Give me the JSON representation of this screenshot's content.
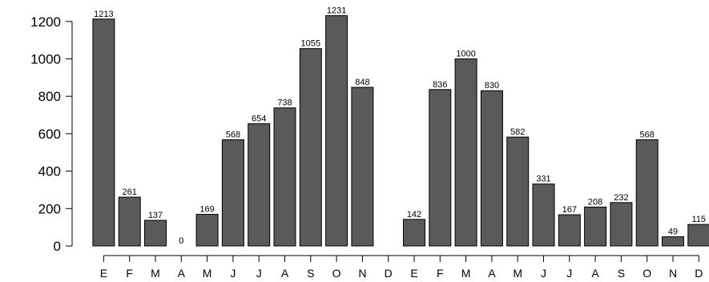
{
  "chart_data": {
    "type": "bar",
    "categories": [
      "E",
      "F",
      "M",
      "A",
      "M",
      "J",
      "J",
      "A",
      "S",
      "O",
      "N",
      "D",
      "E",
      "F",
      "M",
      "A",
      "M",
      "J",
      "J",
      "A",
      "S",
      "O",
      "N",
      "D"
    ],
    "values": [
      1213,
      261,
      137,
      0,
      169,
      568,
      654,
      738,
      1055,
      1231,
      848,
      null,
      142,
      836,
      1000,
      830,
      582,
      331,
      167,
      208,
      232,
      568,
      49,
      115
    ],
    "data_labels": [
      "1213",
      "261",
      "137",
      "0",
      "169",
      "568",
      "654",
      "738",
      "1055",
      "1231",
      "848",
      "",
      "142",
      "836",
      "1000",
      "830",
      "582",
      "331",
      "167",
      "208",
      "232",
      "568",
      "49",
      "115"
    ],
    "yticks": [
      0,
      200,
      400,
      600,
      800,
      1000,
      1200
    ],
    "ylim": [
      0,
      1231
    ],
    "title": "",
    "xlabel": "",
    "ylabel": "",
    "bar_color": "#5a5a5a",
    "grid": false,
    "legend": "none"
  }
}
